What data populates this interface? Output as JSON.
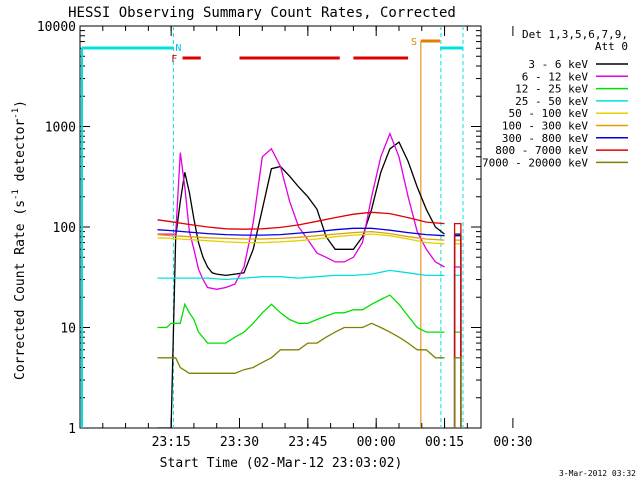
{
  "chart_data": {
    "type": "line",
    "title": "HESSI Observing Summary Count Rates, Corrected",
    "xlabel": "Start Time (02-Mar-12 23:03:02)",
    "ylabel_main": "Corrected Count Rate (s",
    "ylabel_sup1": "-1",
    "ylabel_mid": " detector",
    "ylabel_sup2": "-1",
    "ylabel_end": ")",
    "yscale": "log",
    "ylim": [
      1,
      10000
    ],
    "xlim_minutes": [
      -8,
      80
    ],
    "x_ticks": [
      {
        "t": 12,
        "label": "23:15"
      },
      {
        "t": 27,
        "label": "23:30"
      },
      {
        "t": 42,
        "label": "23:45"
      },
      {
        "t": 57,
        "label": "00:00"
      },
      {
        "t": 72,
        "label": "00:15"
      },
      {
        "t": 87,
        "label": "00:30"
      }
    ],
    "y_ticks": [
      {
        "v": 1,
        "label": "1"
      },
      {
        "v": 10,
        "label": "10"
      },
      {
        "v": 100,
        "label": "100"
      },
      {
        "v": 1000,
        "label": "1000"
      },
      {
        "v": 10000,
        "label": "10000"
      }
    ],
    "legend_header": [
      "Det 1,3,5,6,7,9,",
      "Att 0"
    ],
    "legend_position": "right",
    "series": [
      {
        "name": "3 - 6 keV",
        "color": "#000000",
        "x": [
          9,
          10,
          11,
          12,
          13,
          14,
          15,
          16,
          17,
          18,
          19,
          20,
          21,
          22,
          24,
          26,
          28,
          30,
          32,
          34,
          36,
          38,
          40,
          42,
          44,
          46,
          48,
          50,
          52,
          54,
          56,
          58,
          60,
          62,
          64,
          66,
          68,
          70,
          72
        ],
        "y": [
          1,
          1,
          1,
          1,
          80,
          180,
          350,
          220,
          120,
          70,
          50,
          40,
          35,
          34,
          33,
          34,
          35,
          60,
          150,
          380,
          400,
          320,
          250,
          200,
          150,
          80,
          60,
          60,
          60,
          80,
          150,
          350,
          600,
          700,
          450,
          250,
          150,
          100,
          85
        ]
      },
      {
        "name": "6 - 12 keV",
        "color": "#e000e0",
        "x": [
          9,
          11,
          13,
          14,
          15,
          16,
          17,
          18,
          19,
          20,
          22,
          24,
          26,
          28,
          30,
          32,
          34,
          36,
          38,
          40,
          42,
          44,
          46,
          48,
          50,
          52,
          54,
          56,
          58,
          60,
          62,
          64,
          66,
          68,
          70,
          72
        ],
        "y": [
          85,
          85,
          85,
          550,
          250,
          90,
          60,
          38,
          30,
          25,
          24,
          25,
          27,
          40,
          110,
          500,
          600,
          400,
          180,
          100,
          75,
          55,
          50,
          45,
          45,
          50,
          70,
          200,
          500,
          850,
          500,
          200,
          90,
          60,
          45,
          40
        ]
      },
      {
        "name": "12 - 25 keV",
        "color": "#00e000",
        "x": [
          9,
          10,
          11,
          12,
          13,
          14,
          15,
          16,
          17,
          18,
          20,
          22,
          24,
          26,
          28,
          30,
          32,
          34,
          36,
          38,
          40,
          42,
          44,
          46,
          48,
          50,
          52,
          54,
          56,
          58,
          60,
          62,
          64,
          66,
          68,
          70,
          72
        ],
        "y": [
          10,
          10,
          10,
          11,
          11,
          11,
          17,
          14,
          12,
          9,
          7,
          7,
          7,
          8,
          9,
          11,
          14,
          17,
          14,
          12,
          11,
          11,
          12,
          13,
          14,
          14,
          15,
          15,
          17,
          19,
          21,
          17,
          13,
          10,
          9,
          9,
          9
        ]
      },
      {
        "name": "25 - 50 keV",
        "color": "#00e0e0",
        "x": [
          9,
          12,
          16,
          20,
          24,
          28,
          32,
          36,
          40,
          44,
          48,
          52,
          56,
          60,
          64,
          68,
          72
        ],
        "y": [
          31,
          31,
          31,
          31,
          30,
          31,
          32,
          32,
          31,
          32,
          33,
          33,
          34,
          37,
          35,
          33,
          33
        ]
      },
      {
        "name": "50 - 100 keV",
        "color": "#e0d000",
        "x": [
          9,
          12,
          16,
          20,
          24,
          28,
          32,
          36,
          40,
          44,
          48,
          52,
          56,
          60,
          64,
          68,
          72
        ],
        "y": [
          78,
          77,
          75,
          73,
          71,
          70,
          70,
          71,
          73,
          76,
          80,
          83,
          85,
          82,
          76,
          70,
          68
        ]
      },
      {
        "name": "100 - 300 keV",
        "color": "#e0a000",
        "x": [
          9,
          12,
          16,
          20,
          24,
          28,
          32,
          36,
          40,
          44,
          48,
          52,
          56,
          60,
          64,
          68,
          72
        ],
        "y": [
          84,
          82,
          80,
          78,
          77,
          76,
          76,
          77,
          79,
          82,
          85,
          88,
          90,
          86,
          80,
          76,
          74
        ]
      },
      {
        "name": "300 - 800 keV",
        "color": "#0000e0",
        "x": [
          9,
          12,
          16,
          20,
          24,
          28,
          32,
          36,
          40,
          44,
          48,
          52,
          56,
          60,
          64,
          68,
          72
        ],
        "y": [
          94,
          92,
          89,
          86,
          84,
          83,
          83,
          84,
          87,
          90,
          94,
          97,
          97,
          93,
          88,
          84,
          82
        ]
      },
      {
        "name": "800 - 7000 keV",
        "color": "#e00000",
        "x": [
          9,
          12,
          16,
          20,
          24,
          28,
          32,
          36,
          40,
          44,
          48,
          52,
          56,
          60,
          64,
          68,
          72
        ],
        "y": [
          118,
          113,
          106,
          100,
          96,
          95,
          96,
          99,
          105,
          114,
          124,
          134,
          140,
          136,
          124,
          112,
          108
        ]
      },
      {
        "name": "7000 - 20000 keV",
        "color": "#808000",
        "x": [
          9,
          10,
          11,
          12,
          13,
          14,
          16,
          18,
          20,
          22,
          24,
          26,
          28,
          30,
          32,
          34,
          36,
          38,
          40,
          42,
          44,
          46,
          48,
          50,
          52,
          54,
          56,
          58,
          60,
          62,
          64,
          66,
          68,
          70,
          72
        ],
        "y": [
          5,
          5,
          5,
          5,
          5,
          4,
          3.5,
          3.5,
          3.5,
          3.5,
          3.5,
          3.5,
          3.8,
          4,
          4.5,
          5,
          6,
          6,
          6,
          7,
          7,
          8,
          9,
          10,
          10,
          10,
          11,
          10,
          9,
          8,
          7,
          6,
          6,
          5,
          5
        ]
      }
    ],
    "flag_labels": [
      {
        "text": "F",
        "color": "#e00000"
      },
      {
        "text": "N",
        "color": "#00c0e0"
      },
      {
        "text": "S",
        "color": "#e08000"
      }
    ],
    "timestamp": "3-Mar-2012 03:32"
  }
}
